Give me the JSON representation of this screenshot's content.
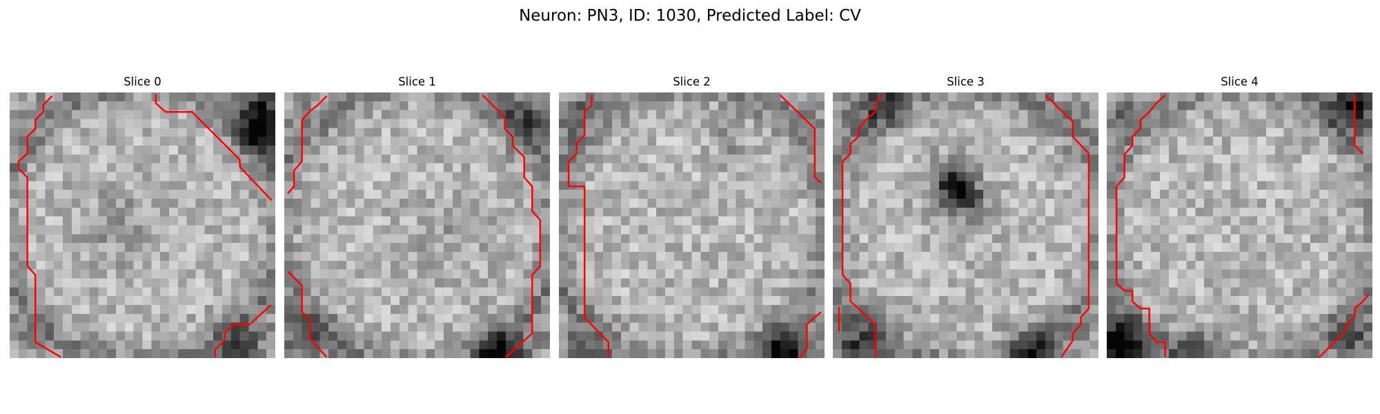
{
  "figure": {
    "title": "Neuron: PN3, ID: 1030, Predicted Label: CV"
  },
  "panels": [
    {
      "title": "Slice 0"
    },
    {
      "title": "Slice 1"
    },
    {
      "title": "Slice 2"
    },
    {
      "title": "Slice 3"
    },
    {
      "title": "Slice 4"
    }
  ],
  "colors": {
    "contour": "#ff0000",
    "background": "#ffffff"
  }
}
